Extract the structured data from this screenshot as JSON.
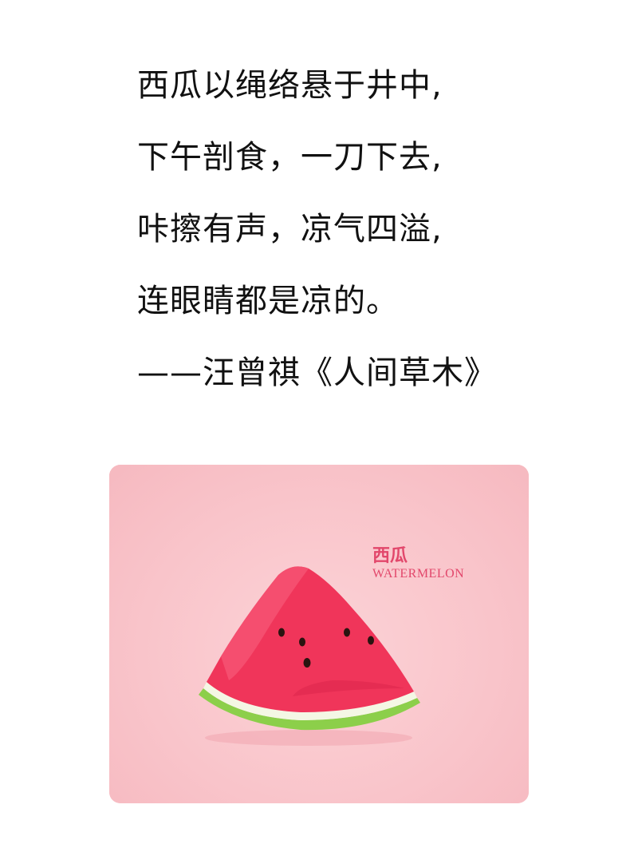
{
  "poem": {
    "lines": [
      "西瓜以绳络悬于井中,",
      "下午剖食，一刀下去,",
      "咔擦有声，凉气四溢,",
      "连眼睛都是凉的。",
      "——汪曾祺《人间草木》"
    ]
  },
  "card": {
    "label_cn": "西瓜",
    "label_en": "WATERMELON",
    "background_color": "#f9c4ca",
    "accent_color": "#e2476b"
  }
}
